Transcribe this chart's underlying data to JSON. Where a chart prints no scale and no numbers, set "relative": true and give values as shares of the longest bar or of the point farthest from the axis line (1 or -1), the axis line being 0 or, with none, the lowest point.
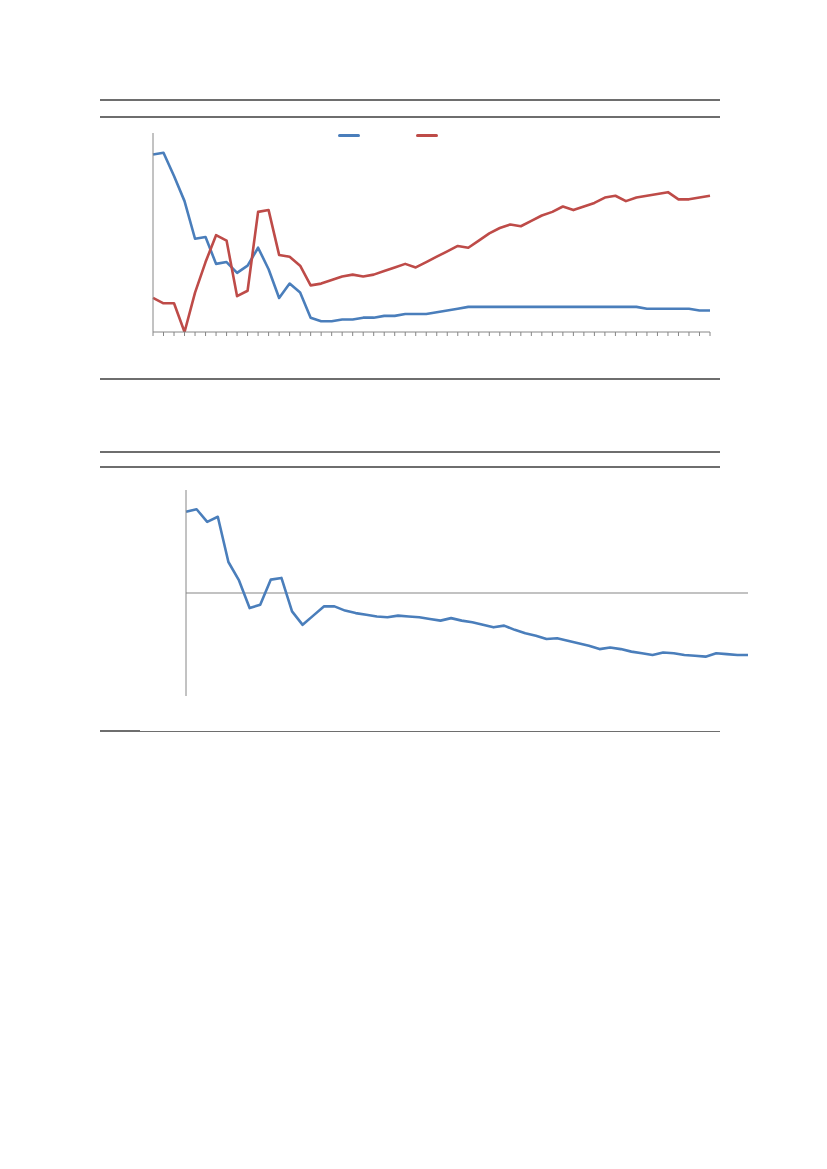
{
  "chart_data": [
    {
      "type": "line",
      "relative": true,
      "grid": false,
      "marker": "none",
      "line_style": "solid",
      "categories": [
        null,
        null,
        null,
        null,
        null,
        null,
        null,
        null,
        null,
        null,
        null,
        null,
        null,
        null,
        null,
        null,
        null,
        null,
        null,
        null,
        null,
        null,
        null,
        null,
        null,
        null,
        null,
        null,
        null,
        null,
        null,
        null,
        null,
        null,
        null,
        null,
        null,
        null,
        null,
        null,
        null,
        null,
        null,
        null,
        null,
        null,
        null,
        null,
        null,
        null,
        null,
        null,
        null,
        null
      ],
      "series": [
        {
          "color": "#4a7ebb",
          "values": [
            0.99,
            1.0,
            0.87,
            0.73,
            0.52,
            0.53,
            0.38,
            0.39,
            0.33,
            0.37,
            0.47,
            0.35,
            0.19,
            0.27,
            0.22,
            0.08,
            0.06,
            0.06,
            0.07,
            0.07,
            0.08,
            0.08,
            0.09,
            0.09,
            0.1,
            0.1,
            0.1,
            0.11,
            0.12,
            0.13,
            0.14,
            0.14,
            0.14,
            0.14,
            0.14,
            0.14,
            0.14,
            0.14,
            0.14,
            0.14,
            0.14,
            0.14,
            0.14,
            0.14,
            0.14,
            0.14,
            0.14,
            0.13,
            0.13,
            0.13,
            0.13,
            0.13,
            0.12,
            0.12
          ]
        },
        {
          "color": "#be4b48",
          "values": [
            0.19,
            0.16,
            0.16,
            0.0,
            0.22,
            0.39,
            0.54,
            0.51,
            0.2,
            0.23,
            0.67,
            0.68,
            0.43,
            0.42,
            0.37,
            0.26,
            0.27,
            0.29,
            0.31,
            0.32,
            0.31,
            0.32,
            0.34,
            0.36,
            0.38,
            0.36,
            0.39,
            0.42,
            0.45,
            0.48,
            0.47,
            0.51,
            0.55,
            0.58,
            0.6,
            0.59,
            0.62,
            0.65,
            0.67,
            0.7,
            0.68,
            0.7,
            0.72,
            0.75,
            0.76,
            0.73,
            0.75,
            0.76,
            0.77,
            0.78,
            0.74,
            0.74,
            0.75,
            0.76
          ]
        }
      ]
    },
    {
      "type": "line",
      "relative": true,
      "grid": false,
      "marker": "none",
      "line_style": "solid",
      "categories": [
        null,
        null,
        null,
        null,
        null,
        null,
        null,
        null,
        null,
        null,
        null,
        null,
        null,
        null,
        null,
        null,
        null,
        null,
        null,
        null,
        null,
        null,
        null,
        null,
        null,
        null,
        null,
        null,
        null,
        null,
        null,
        null,
        null,
        null,
        null,
        null,
        null,
        null,
        null,
        null,
        null,
        null,
        null,
        null,
        null,
        null,
        null,
        null,
        null,
        null,
        null,
        null,
        null,
        null
      ],
      "series": [
        {
          "color": "#4a7ebb",
          "values": [
            0.97,
            1.0,
            0.85,
            0.91,
            0.37,
            0.15,
            -0.18,
            -0.14,
            0.16,
            0.18,
            -0.22,
            -0.38,
            -0.27,
            -0.16,
            -0.16,
            -0.21,
            -0.24,
            -0.26,
            -0.28,
            -0.29,
            -0.27,
            -0.28,
            -0.29,
            -0.31,
            -0.33,
            -0.3,
            -0.33,
            -0.35,
            -0.38,
            -0.41,
            -0.39,
            -0.44,
            -0.48,
            -0.51,
            -0.55,
            -0.54,
            -0.57,
            -0.6,
            -0.63,
            -0.67,
            -0.65,
            -0.67,
            -0.7,
            -0.72,
            -0.74,
            -0.71,
            -0.72,
            -0.74,
            -0.75,
            -0.76,
            -0.72,
            -0.73,
            -0.74,
            -0.74
          ]
        }
      ]
    }
  ]
}
